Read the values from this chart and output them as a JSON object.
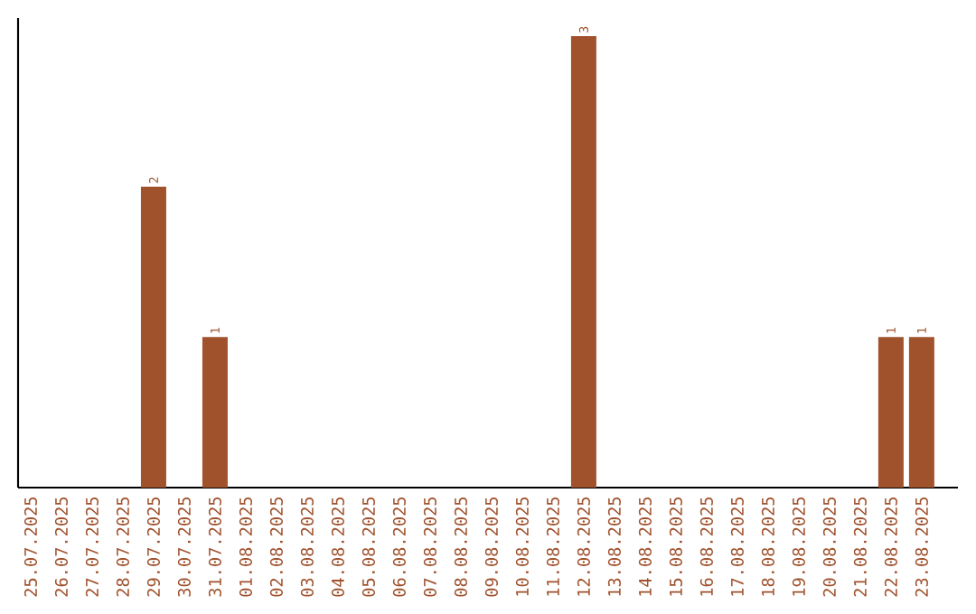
{
  "chart_data": {
    "type": "bar",
    "categories": [
      "25.07.2025",
      "26.07.2025",
      "27.07.2025",
      "28.07.2025",
      "29.07.2025",
      "30.07.2025",
      "31.07.2025",
      "01.08.2025",
      "02.08.2025",
      "03.08.2025",
      "04.08.2025",
      "05.08.2025",
      "06.08.2025",
      "07.08.2025",
      "08.08.2025",
      "09.08.2025",
      "10.08.2025",
      "11.08.2025",
      "12.08.2025",
      "13.08.2025",
      "14.08.2025",
      "15.08.2025",
      "16.08.2025",
      "17.08.2025",
      "18.08.2025",
      "19.08.2025",
      "20.08.2025",
      "21.08.2025",
      "22.08.2025",
      "23.08.2025"
    ],
    "values": [
      0,
      0,
      0,
      0,
      2,
      0,
      1,
      0,
      0,
      0,
      0,
      0,
      0,
      0,
      0,
      0,
      0,
      0,
      3,
      0,
      0,
      0,
      0,
      0,
      0,
      0,
      0,
      0,
      1,
      1
    ],
    "value_labels": [
      null,
      null,
      null,
      null,
      "2",
      null,
      "1",
      null,
      null,
      null,
      null,
      null,
      null,
      null,
      null,
      null,
      null,
      null,
      "3",
      null,
      null,
      null,
      null,
      null,
      null,
      null,
      null,
      null,
      "1",
      "1"
    ],
    "color": "#a0522d"
  }
}
